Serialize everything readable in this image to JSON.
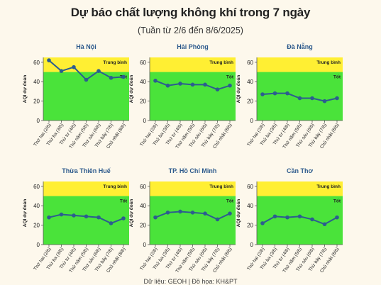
{
  "header": {
    "title": "Dự báo chất lượng không khí trong 7 ngày",
    "subtitle": "(Tuần từ 2/6 đến 8/6/2025)"
  },
  "footer": {
    "source": "Dữ liệu: GEOH | Đồ họa: KH&PT"
  },
  "colors": {
    "good": "#4ae33a",
    "moderate": "#ffef33",
    "line": "#2c5d8f",
    "title": "#2d5a8c"
  },
  "chart_data": [
    {
      "type": "line",
      "title": "Hà Nội",
      "categories": [
        "Thứ hai (2/6)",
        "Thứ ba (3/6)",
        "Thứ tư (4/6)",
        "Thứ năm (5/6)",
        "Thứ sáu (6/6)",
        "Thứ bảy (7/6)",
        "Chủ nhật (8/6)"
      ],
      "values": [
        62,
        51,
        55,
        42,
        51,
        44,
        45
      ],
      "ylabel": "AQI dự đoán",
      "ylim": [
        0,
        65
      ],
      "yticks": [
        0,
        20,
        40,
        60
      ],
      "bands": [
        {
          "label": "Tốt",
          "from": 0,
          "to": 50
        },
        {
          "label": "Trung bình",
          "from": 50,
          "to": 65
        }
      ]
    },
    {
      "type": "line",
      "title": "Hải Phòng",
      "categories": [
        "Thứ hai (2/6)",
        "Thứ ba (3/6)",
        "Thứ tư (4/6)",
        "Thứ năm (5/6)",
        "Thứ sáu (6/6)",
        "Thứ bảy (7/6)",
        "Chủ nhật (8/6)"
      ],
      "values": [
        41,
        36,
        38,
        37,
        37,
        32,
        36
      ],
      "ylabel": "AQI dự đoán",
      "ylim": [
        0,
        65
      ],
      "yticks": [
        0,
        20,
        40,
        60
      ],
      "bands": [
        {
          "label": "Tốt",
          "from": 0,
          "to": 50
        },
        {
          "label": "Trung bình",
          "from": 50,
          "to": 65
        }
      ]
    },
    {
      "type": "line",
      "title": "Đà Nẵng",
      "categories": [
        "Thứ hai (2/6)",
        "Thứ ba (3/6)",
        "Thứ tư (4/6)",
        "Thứ năm (5/6)",
        "Thứ sáu (6/6)",
        "Thứ bảy (7/6)",
        "Chủ nhật (8/6)"
      ],
      "values": [
        27,
        28,
        28,
        23,
        23,
        20,
        23
      ],
      "ylabel": "AQI dự đoán",
      "ylim": [
        0,
        65
      ],
      "yticks": [
        0,
        20,
        40,
        60
      ],
      "bands": [
        {
          "label": "Tốt",
          "from": 0,
          "to": 50
        },
        {
          "label": "Trung bình",
          "from": 50,
          "to": 65
        }
      ]
    },
    {
      "type": "line",
      "title": "Thừa Thiên Huế",
      "categories": [
        "Thứ hai (2/6)",
        "Thứ ba (3/6)",
        "Thứ tư (4/6)",
        "Thứ năm (5/6)",
        "Thứ sáu (6/6)",
        "Thứ bảy (7/6)",
        "Chủ nhật (8/6)"
      ],
      "values": [
        28,
        31,
        30,
        29,
        28,
        22,
        27
      ],
      "ylabel": "AQI dự đoán",
      "ylim": [
        0,
        65
      ],
      "yticks": [
        0,
        20,
        40,
        60
      ],
      "bands": [
        {
          "label": "Tốt",
          "from": 0,
          "to": 50
        },
        {
          "label": "Trung bình",
          "from": 50,
          "to": 65
        }
      ]
    },
    {
      "type": "line",
      "title": "TP. Hồ Chí Minh",
      "categories": [
        "Thứ hai (2/6)",
        "Thứ ba (3/6)",
        "Thứ tư (4/6)",
        "Thứ năm (5/6)",
        "Thứ sáu (6/6)",
        "Thứ bảy (7/6)",
        "Chủ nhật (8/6)"
      ],
      "values": [
        28,
        33,
        34,
        33,
        32,
        26,
        32
      ],
      "ylabel": "AQI dự đoán",
      "ylim": [
        0,
        65
      ],
      "yticks": [
        0,
        20,
        40,
        60
      ],
      "bands": [
        {
          "label": "Tốt",
          "from": 0,
          "to": 50
        },
        {
          "label": "Trung bình",
          "from": 50,
          "to": 65
        }
      ]
    },
    {
      "type": "line",
      "title": "Cần Thơ",
      "categories": [
        "Thứ hai (2/6)",
        "Thứ ba (3/6)",
        "Thứ tư (4/6)",
        "Thứ năm (5/6)",
        "Thứ sáu (6/6)",
        "Thứ bảy (7/6)",
        "Chủ nhật (8/6)"
      ],
      "values": [
        22,
        29,
        28,
        29,
        26,
        21,
        28
      ],
      "ylabel": "AQI dự đoán",
      "ylim": [
        0,
        65
      ],
      "yticks": [
        0,
        20,
        40,
        60
      ],
      "bands": [
        {
          "label": "Tốt",
          "from": 0,
          "to": 50
        },
        {
          "label": "Trung bình",
          "from": 50,
          "to": 65
        }
      ]
    }
  ]
}
